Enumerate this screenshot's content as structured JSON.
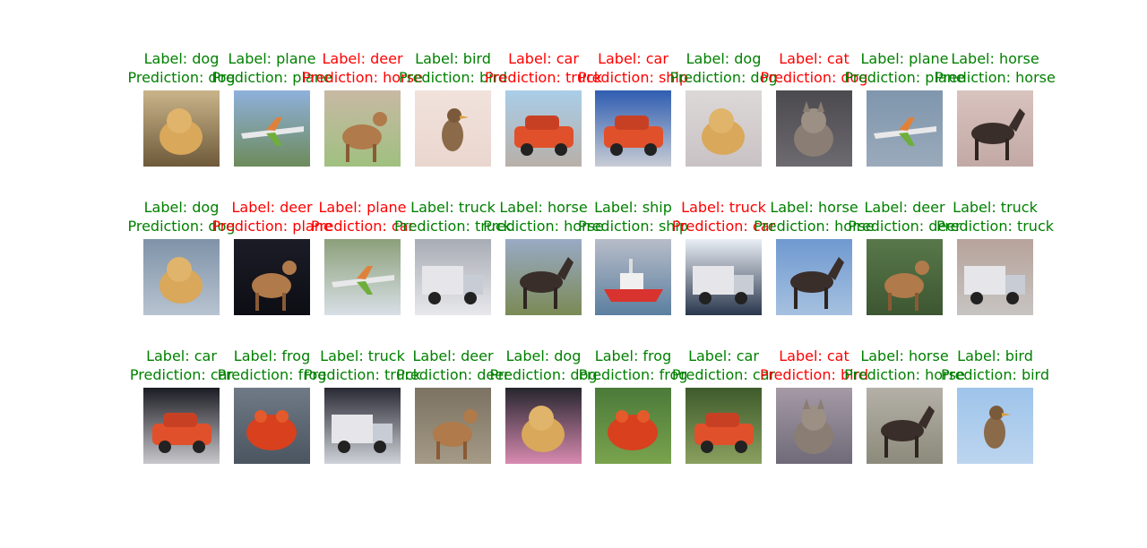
{
  "colors": {
    "correct": "#008000",
    "incorrect": "#ff0000"
  },
  "grid": [
    [
      {
        "label": "Label: dog",
        "prediction": "Prediction: dog",
        "correct": true,
        "subject": "dog"
      },
      {
        "label": "Label: plane",
        "prediction": "Prediction: plane",
        "correct": true,
        "subject": "plane"
      },
      {
        "label": "Label: deer",
        "prediction": "Prediction: horse",
        "correct": false,
        "subject": "deer"
      },
      {
        "label": "Label: bird",
        "prediction": "Prediction: bird",
        "correct": true,
        "subject": "bird"
      },
      {
        "label": "Label: car",
        "prediction": "Prediction: truck",
        "correct": false,
        "subject": "car"
      },
      {
        "label": "Label: car",
        "prediction": "Prediction: ship",
        "correct": false,
        "subject": "car"
      },
      {
        "label": "Label: dog",
        "prediction": "Prediction: dog",
        "correct": true,
        "subject": "dog"
      },
      {
        "label": "Label: cat",
        "prediction": "Prediction: dog",
        "correct": false,
        "subject": "cat"
      },
      {
        "label": "Label: plane",
        "prediction": "Prediction: plane",
        "correct": true,
        "subject": "plane"
      },
      {
        "label": "Label: horse",
        "prediction": "Prediction: horse",
        "correct": true,
        "subject": "horse"
      }
    ],
    [
      {
        "label": "Label: dog",
        "prediction": "Prediction: dog",
        "correct": true,
        "subject": "dog"
      },
      {
        "label": "Label: deer",
        "prediction": "Prediction: plane",
        "correct": false,
        "subject": "deer"
      },
      {
        "label": "Label: plane",
        "prediction": "Prediction: car",
        "correct": false,
        "subject": "plane"
      },
      {
        "label": "Label: truck",
        "prediction": "Prediction: truck",
        "correct": true,
        "subject": "truck"
      },
      {
        "label": "Label: horse",
        "prediction": "Prediction: horse",
        "correct": true,
        "subject": "horse"
      },
      {
        "label": "Label: ship",
        "prediction": "Prediction: ship",
        "correct": true,
        "subject": "ship"
      },
      {
        "label": "Label: truck",
        "prediction": "Prediction: car",
        "correct": false,
        "subject": "truck"
      },
      {
        "label": "Label: horse",
        "prediction": "Prediction: horse",
        "correct": true,
        "subject": "horse"
      },
      {
        "label": "Label: deer",
        "prediction": "Prediction: deer",
        "correct": true,
        "subject": "deer"
      },
      {
        "label": "Label: truck",
        "prediction": "Prediction: truck",
        "correct": true,
        "subject": "truck"
      }
    ],
    [
      {
        "label": "Label: car",
        "prediction": "Prediction: car",
        "correct": true,
        "subject": "car"
      },
      {
        "label": "Label: frog",
        "prediction": "Prediction: frog",
        "correct": true,
        "subject": "frog"
      },
      {
        "label": "Label: truck",
        "prediction": "Prediction: truck",
        "correct": true,
        "subject": "truck"
      },
      {
        "label": "Label: deer",
        "prediction": "Prediction: deer",
        "correct": true,
        "subject": "deer"
      },
      {
        "label": "Label: dog",
        "prediction": "Prediction: dog",
        "correct": true,
        "subject": "dog"
      },
      {
        "label": "Label: frog",
        "prediction": "Prediction: frog",
        "correct": true,
        "subject": "frog"
      },
      {
        "label": "Label: car",
        "prediction": "Prediction: car",
        "correct": true,
        "subject": "car"
      },
      {
        "label": "Label: cat",
        "prediction": "Prediction: bird",
        "correct": false,
        "subject": "cat"
      },
      {
        "label": "Label: horse",
        "prediction": "Prediction: horse",
        "correct": true,
        "subject": "horse"
      },
      {
        "label": "Label: bird",
        "prediction": "Prediction: bird",
        "correct": true,
        "subject": "bird"
      }
    ]
  ]
}
